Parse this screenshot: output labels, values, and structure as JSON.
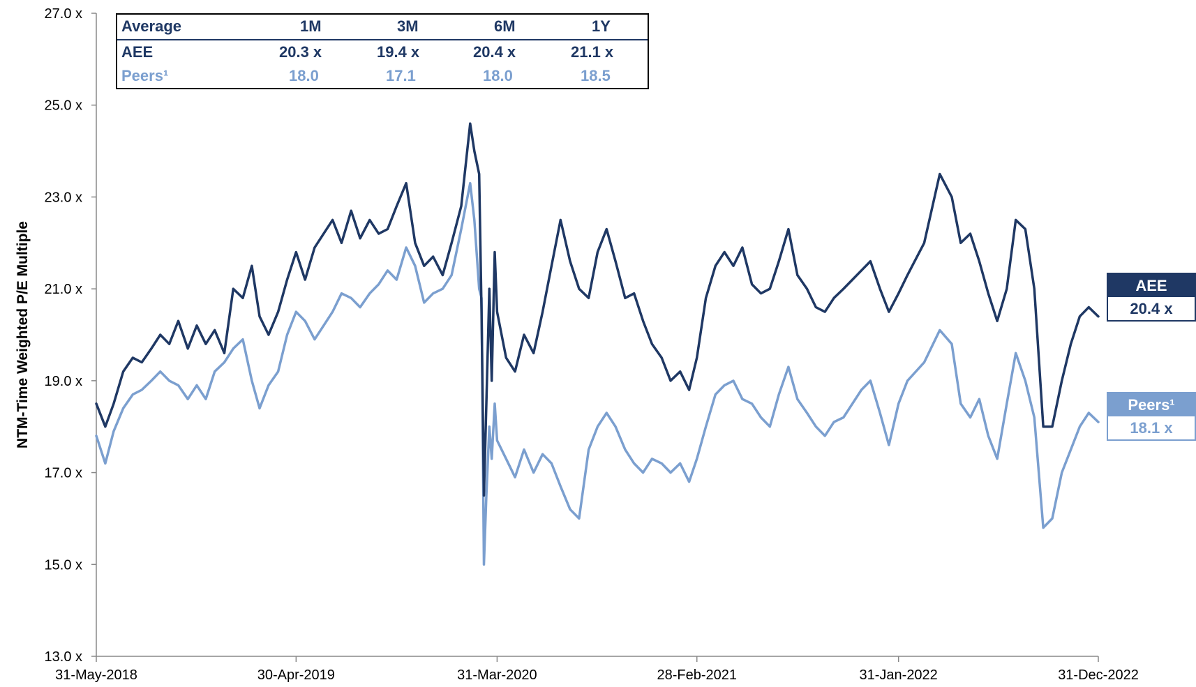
{
  "chart_data": {
    "type": "line",
    "ylabel": "NTM-Time Weighted P/E Multiple",
    "ylim": [
      13.0,
      27.0
    ],
    "yticks": [
      "13.0 x",
      "15.0 x",
      "17.0 x",
      "19.0 x",
      "21.0 x",
      "23.0 x",
      "25.0 x",
      "27.0 x"
    ],
    "xlim": [
      "2018-05-31",
      "2022-12-31"
    ],
    "xticks": [
      {
        "date": "2018-05-31",
        "label": "31-May-2018"
      },
      {
        "date": "2019-04-30",
        "label": "30-Apr-2019"
      },
      {
        "date": "2020-03-31",
        "label": "31-Mar-2020"
      },
      {
        "date": "2021-02-28",
        "label": "28-Feb-2021"
      },
      {
        "date": "2022-01-31",
        "label": "31-Jan-2022"
      },
      {
        "date": "2022-12-31",
        "label": "31-Dec-2022"
      }
    ],
    "series": [
      {
        "name": "AEE",
        "color": "#1f3864",
        "end_label": "20.4 x",
        "points": [
          [
            "2018-05-31",
            18.5
          ],
          [
            "2018-06-15",
            18.0
          ],
          [
            "2018-06-29",
            18.5
          ],
          [
            "2018-07-15",
            19.2
          ],
          [
            "2018-07-31",
            19.5
          ],
          [
            "2018-08-15",
            19.4
          ],
          [
            "2018-08-31",
            19.7
          ],
          [
            "2018-09-15",
            20.0
          ],
          [
            "2018-09-30",
            19.8
          ],
          [
            "2018-10-15",
            20.3
          ],
          [
            "2018-10-31",
            19.7
          ],
          [
            "2018-11-15",
            20.2
          ],
          [
            "2018-11-30",
            19.8
          ],
          [
            "2018-12-15",
            20.1
          ],
          [
            "2018-12-31",
            19.6
          ],
          [
            "2019-01-15",
            21.0
          ],
          [
            "2019-01-31",
            20.8
          ],
          [
            "2019-02-15",
            21.5
          ],
          [
            "2019-02-28",
            20.4
          ],
          [
            "2019-03-15",
            20.0
          ],
          [
            "2019-03-31",
            20.5
          ],
          [
            "2019-04-15",
            21.2
          ],
          [
            "2019-04-30",
            21.8
          ],
          [
            "2019-05-15",
            21.2
          ],
          [
            "2019-05-31",
            21.9
          ],
          [
            "2019-06-15",
            22.2
          ],
          [
            "2019-06-30",
            22.5
          ],
          [
            "2019-07-15",
            22.0
          ],
          [
            "2019-07-31",
            22.7
          ],
          [
            "2019-08-15",
            22.1
          ],
          [
            "2019-08-31",
            22.5
          ],
          [
            "2019-09-15",
            22.2
          ],
          [
            "2019-09-30",
            22.3
          ],
          [
            "2019-10-15",
            22.8
          ],
          [
            "2019-10-31",
            23.3
          ],
          [
            "2019-11-15",
            22.0
          ],
          [
            "2019-11-30",
            21.5
          ],
          [
            "2019-12-15",
            21.7
          ],
          [
            "2019-12-31",
            21.3
          ],
          [
            "2020-01-15",
            22.0
          ],
          [
            "2020-01-31",
            22.8
          ],
          [
            "2020-02-15",
            24.6
          ],
          [
            "2020-02-22",
            24.0
          ],
          [
            "2020-03-01",
            23.5
          ],
          [
            "2020-03-05",
            20.5
          ],
          [
            "2020-03-09",
            16.5
          ],
          [
            "2020-03-13",
            18.5
          ],
          [
            "2020-03-18",
            21.0
          ],
          [
            "2020-03-22",
            19.0
          ],
          [
            "2020-03-27",
            21.8
          ],
          [
            "2020-03-31",
            20.5
          ],
          [
            "2020-04-15",
            19.5
          ],
          [
            "2020-04-30",
            19.2
          ],
          [
            "2020-05-15",
            20.0
          ],
          [
            "2020-05-31",
            19.6
          ],
          [
            "2020-06-15",
            20.5
          ],
          [
            "2020-06-30",
            21.5
          ],
          [
            "2020-07-15",
            22.5
          ],
          [
            "2020-07-31",
            21.6
          ],
          [
            "2020-08-15",
            21.0
          ],
          [
            "2020-08-31",
            20.8
          ],
          [
            "2020-09-15",
            21.8
          ],
          [
            "2020-09-30",
            22.3
          ],
          [
            "2020-10-15",
            21.6
          ],
          [
            "2020-10-31",
            20.8
          ],
          [
            "2020-11-15",
            20.9
          ],
          [
            "2020-11-30",
            20.3
          ],
          [
            "2020-12-15",
            19.8
          ],
          [
            "2020-12-31",
            19.5
          ],
          [
            "2021-01-15",
            19.0
          ],
          [
            "2021-01-31",
            19.2
          ],
          [
            "2021-02-15",
            18.8
          ],
          [
            "2021-02-28",
            19.5
          ],
          [
            "2021-03-15",
            20.8
          ],
          [
            "2021-03-31",
            21.5
          ],
          [
            "2021-04-15",
            21.8
          ],
          [
            "2021-04-30",
            21.5
          ],
          [
            "2021-05-15",
            21.9
          ],
          [
            "2021-05-31",
            21.1
          ],
          [
            "2021-06-15",
            20.9
          ],
          [
            "2021-06-30",
            21.0
          ],
          [
            "2021-07-15",
            21.6
          ],
          [
            "2021-07-31",
            22.3
          ],
          [
            "2021-08-15",
            21.3
          ],
          [
            "2021-08-31",
            21.0
          ],
          [
            "2021-09-15",
            20.6
          ],
          [
            "2021-09-30",
            20.5
          ],
          [
            "2021-10-15",
            20.8
          ],
          [
            "2021-10-31",
            21.0
          ],
          [
            "2021-11-15",
            21.2
          ],
          [
            "2021-11-30",
            21.4
          ],
          [
            "2021-12-15",
            21.6
          ],
          [
            "2021-12-31",
            21.0
          ],
          [
            "2022-01-15",
            20.5
          ],
          [
            "2022-01-31",
            20.9
          ],
          [
            "2022-02-15",
            21.3
          ],
          [
            "2022-03-15",
            22.0
          ],
          [
            "2022-04-10",
            23.5
          ],
          [
            "2022-04-30",
            23.0
          ],
          [
            "2022-05-15",
            22.0
          ],
          [
            "2022-05-31",
            22.2
          ],
          [
            "2022-06-15",
            21.6
          ],
          [
            "2022-06-30",
            20.9
          ],
          [
            "2022-07-15",
            20.3
          ],
          [
            "2022-07-31",
            21.0
          ],
          [
            "2022-08-15",
            22.5
          ],
          [
            "2022-08-31",
            22.3
          ],
          [
            "2022-09-15",
            21.0
          ],
          [
            "2022-09-30",
            18.0
          ],
          [
            "2022-10-15",
            18.0
          ],
          [
            "2022-10-31",
            19.0
          ],
          [
            "2022-11-15",
            19.8
          ],
          [
            "2022-11-30",
            20.4
          ],
          [
            "2022-12-15",
            20.6
          ],
          [
            "2022-12-31",
            20.4
          ]
        ]
      },
      {
        "name": "Peers¹",
        "color": "#7b9fcf",
        "end_label": "18.1 x",
        "points": [
          [
            "2018-05-31",
            17.8
          ],
          [
            "2018-06-15",
            17.2
          ],
          [
            "2018-06-29",
            17.9
          ],
          [
            "2018-07-15",
            18.4
          ],
          [
            "2018-07-31",
            18.7
          ],
          [
            "2018-08-15",
            18.8
          ],
          [
            "2018-08-31",
            19.0
          ],
          [
            "2018-09-15",
            19.2
          ],
          [
            "2018-09-30",
            19.0
          ],
          [
            "2018-10-15",
            18.9
          ],
          [
            "2018-10-31",
            18.6
          ],
          [
            "2018-11-15",
            18.9
          ],
          [
            "2018-11-30",
            18.6
          ],
          [
            "2018-12-15",
            19.2
          ],
          [
            "2018-12-31",
            19.4
          ],
          [
            "2019-01-15",
            19.7
          ],
          [
            "2019-01-31",
            19.9
          ],
          [
            "2019-02-15",
            19.0
          ],
          [
            "2019-02-28",
            18.4
          ],
          [
            "2019-03-15",
            18.9
          ],
          [
            "2019-03-31",
            19.2
          ],
          [
            "2019-04-15",
            20.0
          ],
          [
            "2019-04-30",
            20.5
          ],
          [
            "2019-05-15",
            20.3
          ],
          [
            "2019-05-31",
            19.9
          ],
          [
            "2019-06-15",
            20.2
          ],
          [
            "2019-06-30",
            20.5
          ],
          [
            "2019-07-15",
            20.9
          ],
          [
            "2019-07-31",
            20.8
          ],
          [
            "2019-08-15",
            20.6
          ],
          [
            "2019-08-31",
            20.9
          ],
          [
            "2019-09-15",
            21.1
          ],
          [
            "2019-09-30",
            21.4
          ],
          [
            "2019-10-15",
            21.2
          ],
          [
            "2019-10-31",
            21.9
          ],
          [
            "2019-11-15",
            21.5
          ],
          [
            "2019-11-30",
            20.7
          ],
          [
            "2019-12-15",
            20.9
          ],
          [
            "2019-12-31",
            21.0
          ],
          [
            "2020-01-15",
            21.3
          ],
          [
            "2020-01-31",
            22.3
          ],
          [
            "2020-02-15",
            23.3
          ],
          [
            "2020-02-22",
            22.5
          ],
          [
            "2020-03-01",
            21.0
          ],
          [
            "2020-03-05",
            20.8
          ],
          [
            "2020-03-09",
            15.0
          ],
          [
            "2020-03-13",
            16.5
          ],
          [
            "2020-03-18",
            18.0
          ],
          [
            "2020-03-22",
            17.3
          ],
          [
            "2020-03-27",
            18.5
          ],
          [
            "2020-03-31",
            17.7
          ],
          [
            "2020-04-15",
            17.3
          ],
          [
            "2020-04-30",
            16.9
          ],
          [
            "2020-05-15",
            17.5
          ],
          [
            "2020-05-31",
            17.0
          ],
          [
            "2020-06-15",
            17.4
          ],
          [
            "2020-06-30",
            17.2
          ],
          [
            "2020-07-15",
            16.7
          ],
          [
            "2020-07-31",
            16.2
          ],
          [
            "2020-08-15",
            16.0
          ],
          [
            "2020-08-31",
            17.5
          ],
          [
            "2020-09-15",
            18.0
          ],
          [
            "2020-09-30",
            18.3
          ],
          [
            "2020-10-15",
            18.0
          ],
          [
            "2020-10-31",
            17.5
          ],
          [
            "2020-11-15",
            17.2
          ],
          [
            "2020-11-30",
            17.0
          ],
          [
            "2020-12-15",
            17.3
          ],
          [
            "2020-12-31",
            17.2
          ],
          [
            "2021-01-15",
            17.0
          ],
          [
            "2021-01-31",
            17.2
          ],
          [
            "2021-02-15",
            16.8
          ],
          [
            "2021-02-28",
            17.3
          ],
          [
            "2021-03-15",
            18.0
          ],
          [
            "2021-03-31",
            18.7
          ],
          [
            "2021-04-15",
            18.9
          ],
          [
            "2021-04-30",
            19.0
          ],
          [
            "2021-05-15",
            18.6
          ],
          [
            "2021-05-31",
            18.5
          ],
          [
            "2021-06-15",
            18.2
          ],
          [
            "2021-06-30",
            18.0
          ],
          [
            "2021-07-15",
            18.7
          ],
          [
            "2021-07-31",
            19.3
          ],
          [
            "2021-08-15",
            18.6
          ],
          [
            "2021-08-31",
            18.3
          ],
          [
            "2021-09-15",
            18.0
          ],
          [
            "2021-09-30",
            17.8
          ],
          [
            "2021-10-15",
            18.1
          ],
          [
            "2021-10-31",
            18.2
          ],
          [
            "2021-11-15",
            18.5
          ],
          [
            "2021-11-30",
            18.8
          ],
          [
            "2021-12-15",
            19.0
          ],
          [
            "2021-12-31",
            18.3
          ],
          [
            "2022-01-15",
            17.6
          ],
          [
            "2022-01-31",
            18.5
          ],
          [
            "2022-02-15",
            19.0
          ],
          [
            "2022-03-15",
            19.4
          ],
          [
            "2022-04-10",
            20.1
          ],
          [
            "2022-04-30",
            19.8
          ],
          [
            "2022-05-15",
            18.5
          ],
          [
            "2022-05-31",
            18.2
          ],
          [
            "2022-06-15",
            18.6
          ],
          [
            "2022-06-30",
            17.8
          ],
          [
            "2022-07-15",
            17.3
          ],
          [
            "2022-07-31",
            18.5
          ],
          [
            "2022-08-15",
            19.6
          ],
          [
            "2022-08-31",
            19.0
          ],
          [
            "2022-09-15",
            18.2
          ],
          [
            "2022-09-30",
            15.8
          ],
          [
            "2022-10-15",
            16.0
          ],
          [
            "2022-10-31",
            17.0
          ],
          [
            "2022-11-15",
            17.5
          ],
          [
            "2022-11-30",
            18.0
          ],
          [
            "2022-12-15",
            18.3
          ],
          [
            "2022-12-31",
            18.1
          ]
        ]
      }
    ]
  },
  "stats_table": {
    "header": [
      "Average",
      "1M",
      "3M",
      "6M",
      "1Y"
    ],
    "rows": [
      {
        "label": "AEE",
        "values": [
          "20.3 x",
          "19.4 x",
          "20.4 x",
          "21.1 x"
        ],
        "color": "#1f3864"
      },
      {
        "label": "Peers¹",
        "values": [
          "18.0",
          "17.1",
          "18.0",
          "18.5"
        ],
        "color": "#7b9fcf"
      }
    ]
  }
}
